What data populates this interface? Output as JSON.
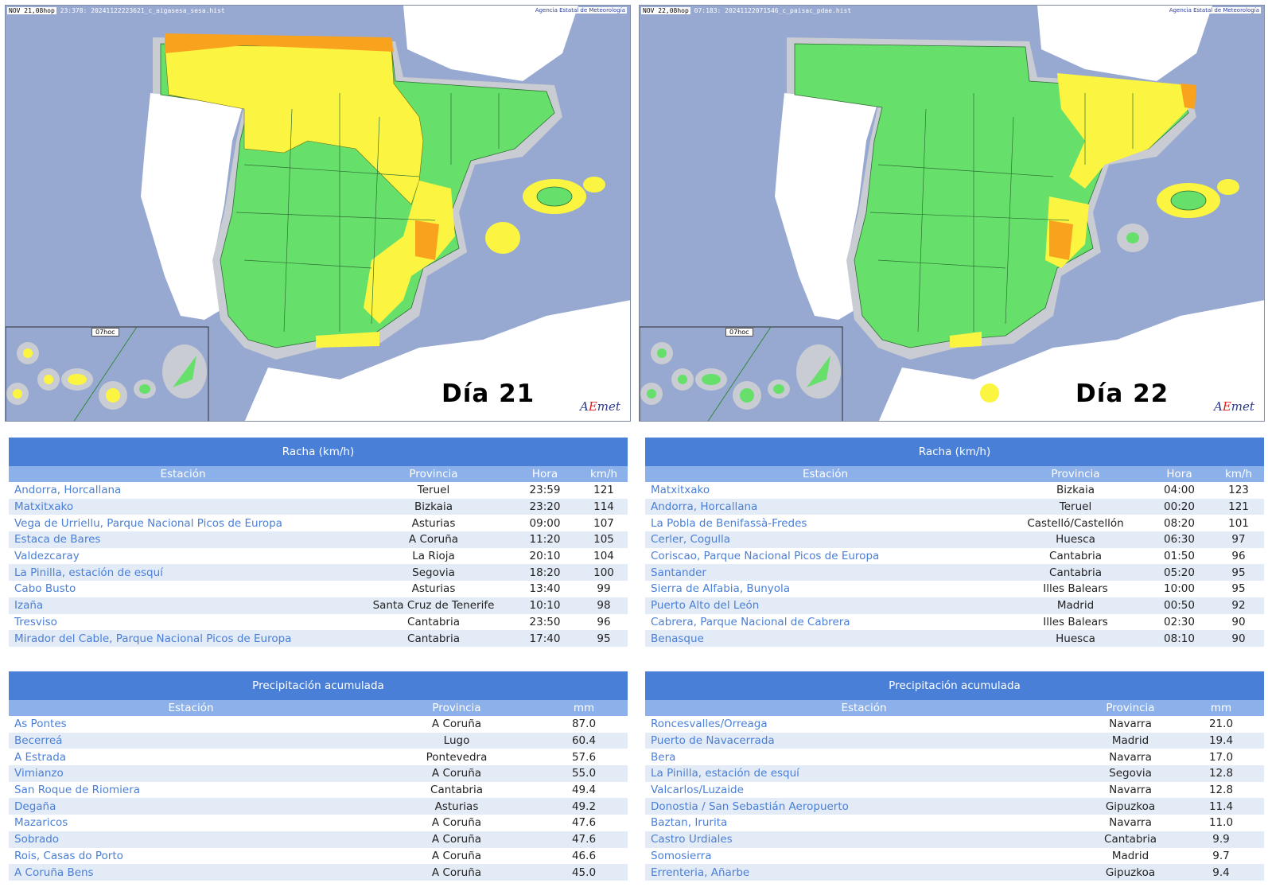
{
  "maps": [
    {
      "header_stamp": "NOV 21,08hop",
      "header_code": "23:378: 20241122223621_c_aigasesa_sesa.hist",
      "agency": "Agencia Estatal de Meteorología",
      "inset_label": "07hoc",
      "day": "Día 21",
      "logo": "AEmet"
    },
    {
      "header_stamp": "NOV 22,08hop",
      "header_code": "07:183: 20241122071546_c_paisac_pdae.hist",
      "agency": "Agencia Estatal de Meteorología",
      "inset_label": "07hoc",
      "day": "Día 22",
      "logo": "AEmet"
    }
  ],
  "colors": {
    "green": "#66e06b",
    "yellow": "#fbf542",
    "orange": "#f9a21e",
    "sea": "#97a9d0",
    "header_blue": "#4a7fd8",
    "subheader_blue": "#8cb0e9"
  },
  "wind_tables": [
    {
      "title": "Racha (km/h)",
      "headers": [
        "Estación",
        "Provincia",
        "Hora",
        "km/h"
      ],
      "rows": [
        [
          "Andorra, Horcallana",
          "Teruel",
          "23:59",
          "121"
        ],
        [
          "Matxitxako",
          "Bizkaia",
          "23:20",
          "114"
        ],
        [
          "Vega de Urriellu, Parque Nacional Picos de Europa",
          "Asturias",
          "09:00",
          "107"
        ],
        [
          "Estaca de Bares",
          "A Coruña",
          "11:20",
          "105"
        ],
        [
          "Valdezcaray",
          "La Rioja",
          "20:10",
          "104"
        ],
        [
          "La Pinilla, estación de esquí",
          "Segovia",
          "18:20",
          "100"
        ],
        [
          "Cabo Busto",
          "Asturias",
          "13:40",
          "99"
        ],
        [
          "Izaña",
          "Santa Cruz de Tenerife",
          "10:10",
          "98"
        ],
        [
          "Tresviso",
          "Cantabria",
          "23:50",
          "96"
        ],
        [
          "Mirador del Cable, Parque Nacional Picos de Europa",
          "Cantabria",
          "17:40",
          "95"
        ]
      ]
    },
    {
      "title": "Racha (km/h)",
      "headers": [
        "Estación",
        "Provincia",
        "Hora",
        "km/h"
      ],
      "rows": [
        [
          "Matxitxako",
          "Bizkaia",
          "04:00",
          "123"
        ],
        [
          "Andorra, Horcallana",
          "Teruel",
          "00:20",
          "121"
        ],
        [
          "La Pobla de Benifassà-Fredes",
          "Castelló/Castellón",
          "08:20",
          "101"
        ],
        [
          "Cerler, Cogulla",
          "Huesca",
          "06:30",
          "97"
        ],
        [
          "Coriscao, Parque Nacional Picos de Europa",
          "Cantabria",
          "01:50",
          "96"
        ],
        [
          "Santander",
          "Cantabria",
          "05:20",
          "95"
        ],
        [
          "Sierra de Alfabia, Bunyola",
          "Illes Balears",
          "10:00",
          "95"
        ],
        [
          "Puerto Alto del León",
          "Madrid",
          "00:50",
          "92"
        ],
        [
          "Cabrera, Parque Nacional de Cabrera",
          "Illes Balears",
          "02:30",
          "90"
        ],
        [
          "Benasque",
          "Huesca",
          "08:10",
          "90"
        ]
      ]
    }
  ],
  "precip_tables": [
    {
      "title": "Precipitación acumulada",
      "headers": [
        "Estación",
        "Provincia",
        "mm"
      ],
      "rows": [
        [
          "As Pontes",
          "A Coruña",
          "87.0"
        ],
        [
          "Becerreá",
          "Lugo",
          "60.4"
        ],
        [
          "A Estrada",
          "Pontevedra",
          "57.6"
        ],
        [
          "Vimianzo",
          "A Coruña",
          "55.0"
        ],
        [
          "San Roque de Riomiera",
          "Cantabria",
          "49.4"
        ],
        [
          "Degaña",
          "Asturias",
          "49.2"
        ],
        [
          "Mazaricos",
          "A Coruña",
          "47.6"
        ],
        [
          "Sobrado",
          "A Coruña",
          "47.6"
        ],
        [
          "Rois, Casas do Porto",
          "A Coruña",
          "46.6"
        ],
        [
          "A Coruña Bens",
          "A Coruña",
          "45.0"
        ]
      ]
    },
    {
      "title": "Precipitación acumulada",
      "headers": [
        "Estación",
        "Provincia",
        "mm"
      ],
      "rows": [
        [
          "Roncesvalles/Orreaga",
          "Navarra",
          "21.0"
        ],
        [
          "Puerto de Navacerrada",
          "Madrid",
          "19.4"
        ],
        [
          "Bera",
          "Navarra",
          "17.0"
        ],
        [
          "La Pinilla, estación de esquí",
          "Segovia",
          "12.8"
        ],
        [
          "Valcarlos/Luzaide",
          "Navarra",
          "12.8"
        ],
        [
          "Donostia / San Sebastián Aeropuerto",
          "Gipuzkoa",
          "11.4"
        ],
        [
          "Baztan, Irurita",
          "Navarra",
          "11.0"
        ],
        [
          "Castro Urdiales",
          "Cantabria",
          "9.9"
        ],
        [
          "Somosierra",
          "Madrid",
          "9.7"
        ],
        [
          "Errenteria, Añarbe",
          "Gipuzkoa",
          "9.4"
        ]
      ]
    }
  ]
}
